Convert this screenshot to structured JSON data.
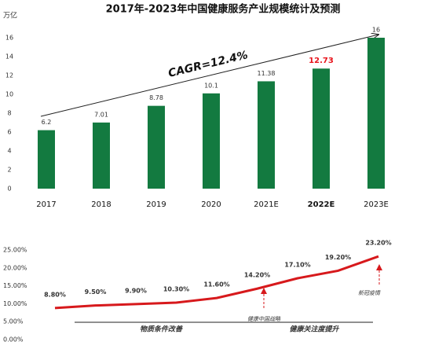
{
  "chart_data": [
    {
      "type": "bar",
      "title": "2017年-2023年中国健康服务产业规模统计及预测",
      "y_label": "万亿",
      "categories": [
        "2017",
        "2018",
        "2019",
        "2020",
        "2021E",
        "2022E",
        "2023E"
      ],
      "values": [
        6.2,
        7.01,
        8.78,
        10.1,
        11.38,
        12.73,
        16
      ],
      "color": "#137a40",
      "highlight_color": "#e8141c",
      "highlight_index": 5,
      "ylim": [
        0,
        16
      ],
      "yticks": [
        0,
        2,
        4,
        6,
        8,
        10,
        12,
        14,
        16
      ],
      "annotation": "CAGR=12.4%"
    },
    {
      "type": "line",
      "color": "#d7191c",
      "values": [
        8.8,
        9.5,
        9.9,
        10.3,
        11.6,
        14.2,
        17.1,
        19.2,
        23.2
      ],
      "value_labels": [
        "8.80%",
        "9.50%",
        "9.90%",
        "10.30%",
        "11.60%",
        "14.20%",
        "17.10%",
        "19.20%",
        "23.20%"
      ],
      "ylim": [
        0,
        25
      ],
      "yticks": [
        {
          "value": 0,
          "label": "0.00%"
        },
        {
          "value": 5,
          "label": "5.00%"
        },
        {
          "value": 10,
          "label": "10.00%"
        },
        {
          "value": 15,
          "label": "15.00%"
        },
        {
          "value": 20,
          "label": "20.00%"
        },
        {
          "value": 25,
          "label": "25.00%"
        }
      ],
      "annotations": [
        "健康中国战略",
        "新冠疫情"
      ],
      "phases": [
        "物质条件改善",
        "健康关注度提升"
      ]
    }
  ]
}
